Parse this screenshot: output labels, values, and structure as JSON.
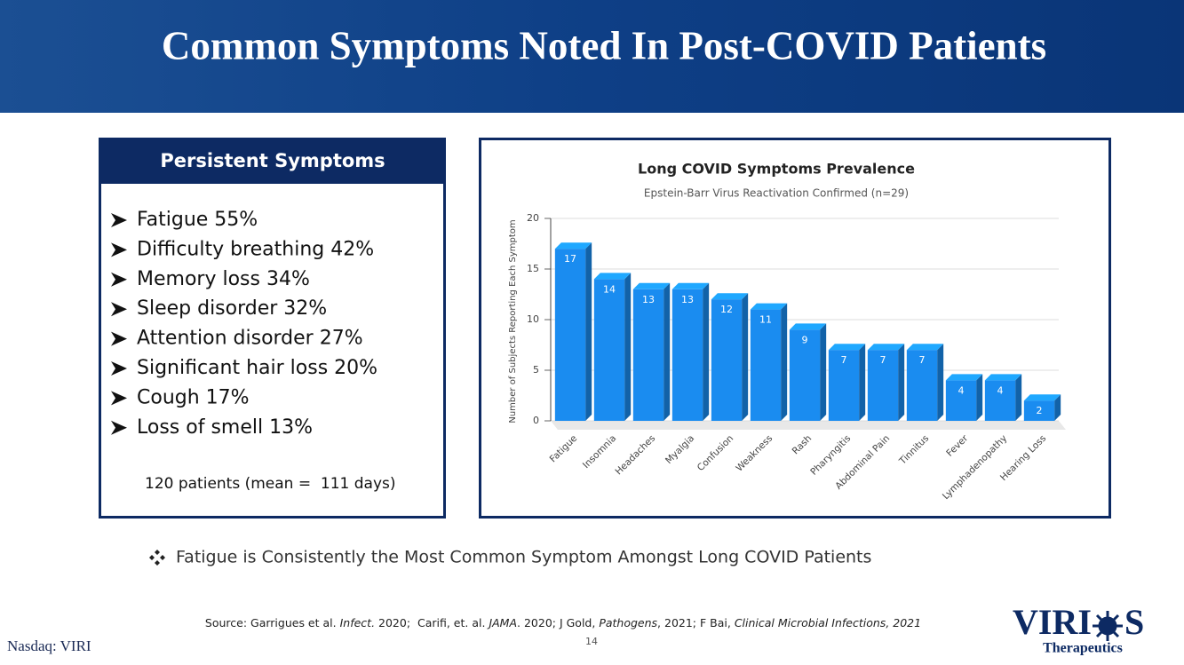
{
  "header": {
    "title": "Common Symptoms Noted In Post-COVID Patients"
  },
  "symptoms_panel": {
    "title": "Persistent Symptoms",
    "items": [
      "Fatigue 55%",
      "Difficulty breathing 42%",
      "Memory loss 34%",
      "Sleep disorder 32%",
      "Attention disorder 27%",
      "Significant hair loss 20%",
      "Cough 17%",
      "Loss of smell 13%"
    ],
    "note": "120 patients (mean =  111 days)"
  },
  "chart_data": {
    "type": "bar",
    "title": "Long COVID Symptoms Prevalence",
    "subtitle": "Epstein-Barr Virus Reactivation Confirmed (n=29)",
    "y_label": "Number of Subjects Reporting Each Symptom",
    "categories": [
      "Fatigue",
      "Insomnia",
      "Headaches",
      "Myalgia",
      "Confusion",
      "Weakness",
      "Rash",
      "Pharyngitis",
      "Abdominal Pain",
      "Tinnitus",
      "Fever",
      "Lymphadenopathy",
      "Hearing Loss"
    ],
    "values": [
      17,
      14,
      13,
      13,
      12,
      11,
      9,
      7,
      7,
      7,
      4,
      4,
      2
    ],
    "color": "#1a8cf0",
    "ylim": [
      0,
      20
    ],
    "yticks": [
      0,
      5,
      10,
      15,
      20
    ],
    "grid": true
  },
  "callout": "Fatigue is Consistently the Most Common Symptom Amongst Long COVID Patients",
  "footer": {
    "source": [
      "Source: Garrigues et al. ",
      "Infect.",
      " 2020;  Carifi, et. al. ",
      "JAMA",
      ". 2020; J Gold, ",
      "Pathogens",
      ", 2021; F Bai, ",
      "Clinical Microbial Infections, 2021"
    ],
    "page_number": "14",
    "ticker": "Nasdaq: VIRI",
    "logo": {
      "left": "VIRI",
      "right": "S",
      "tagline": "Therapeutics"
    }
  }
}
